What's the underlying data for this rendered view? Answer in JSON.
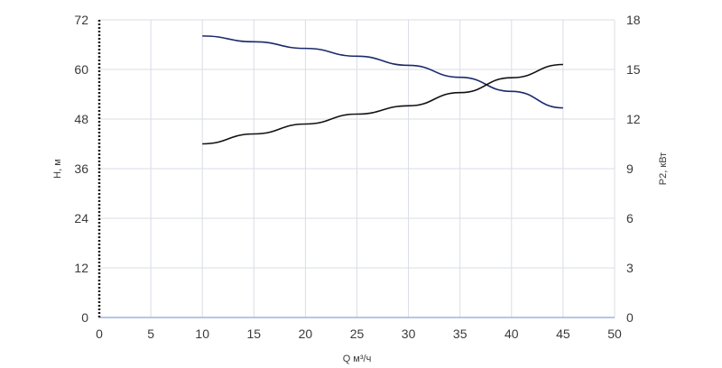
{
  "chart_data": {
    "type": "line",
    "title": "",
    "xlabel": "Q м³/ч",
    "ylabel": "H, м",
    "ylabel_right": "P2, кВт",
    "xlim": [
      0,
      50
    ],
    "ylim": [
      0,
      72
    ],
    "ylim_right": [
      0,
      18
    ],
    "x_ticks": [
      0,
      5,
      10,
      15,
      20,
      25,
      30,
      35,
      40,
      45,
      50
    ],
    "y_ticks": [
      0,
      12,
      24,
      36,
      48,
      60,
      72
    ],
    "y_ticks_right": [
      0,
      3,
      6,
      9,
      12,
      15,
      18
    ],
    "grid": true,
    "series": [
      {
        "axis": "left",
        "color": "#1b2a6b",
        "x": [
          10,
          15,
          20,
          25,
          30,
          35,
          40,
          45
        ],
        "y": [
          68.1,
          66.7,
          65.1,
          63.2,
          61.0,
          58.1,
          54.7,
          50.7
        ]
      },
      {
        "axis": "right",
        "color": "#111111",
        "x": [
          10,
          15,
          20,
          25,
          30,
          35,
          40,
          45
        ],
        "y": [
          10.5,
          11.1,
          11.7,
          12.3,
          12.8,
          13.6,
          14.5,
          15.3
        ]
      }
    ]
  }
}
